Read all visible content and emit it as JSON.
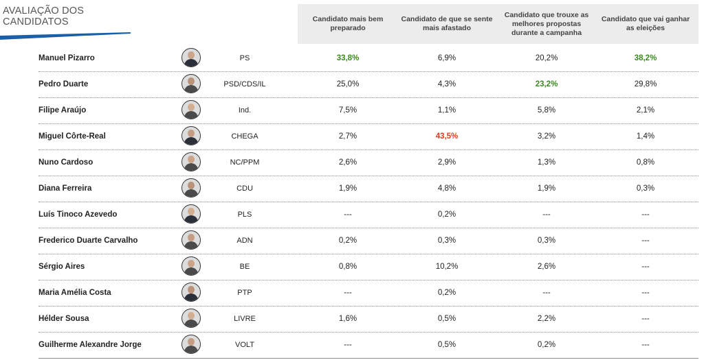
{
  "title": "AVALIAÇÃO DOS\nCANDIDATOS",
  "colors": {
    "highlight_green": "#3a8a1e",
    "highlight_red": "#e03c1e",
    "header_bg": "#ececec",
    "title_bar": "#1a5fa8"
  },
  "headers": [
    "Candidato mais bem preparado",
    "Candidato de que se sente mais afastado",
    "Candidato que trouxe as melhores propostas durante a campanha",
    "Candidato que vai ganhar as eleições"
  ],
  "rows": [
    {
      "name": "Manuel Pizarro",
      "party": "PS",
      "values": [
        "33,8%",
        "6,9%",
        "20,2%",
        "38,2%"
      ],
      "avatar_icon": "person-icon"
    },
    {
      "name": "Pedro Duarte",
      "party": "PSD/CDS/IL",
      "values": [
        "25,0%",
        "4,3%",
        "23,2%",
        "29,8%"
      ],
      "avatar_icon": "person-icon"
    },
    {
      "name": "Filipe Araújo",
      "party": "Ind.",
      "values": [
        "7,5%",
        "1,1%",
        "5,8%",
        "2,1%"
      ],
      "avatar_icon": "person-icon"
    },
    {
      "name": "Miguel Côrte-Real",
      "party": "CHEGA",
      "values": [
        "2,7%",
        "43,5%",
        "3,2%",
        "1,4%"
      ],
      "avatar_icon": "person-icon"
    },
    {
      "name": "Nuno Cardoso",
      "party": "NC/PPM",
      "values": [
        "2,6%",
        "2,9%",
        "1,3%",
        "0,8%"
      ],
      "avatar_icon": "person-icon"
    },
    {
      "name": "Diana Ferreira",
      "party": "CDU",
      "values": [
        "1,9%",
        "4,8%",
        "1,9%",
        "0,3%"
      ],
      "avatar_icon": "person-icon"
    },
    {
      "name": "Luís Tinoco Azevedo",
      "party": "PLS",
      "values": [
        "---",
        "0,2%",
        "---",
        "---"
      ],
      "avatar_icon": "person-icon"
    },
    {
      "name": "Frederico Duarte Carvalho",
      "party": "ADN",
      "values": [
        "0,2%",
        "0,3%",
        "0,3%",
        "---"
      ],
      "avatar_icon": "person-icon"
    },
    {
      "name": "Sérgio Aires",
      "party": "BE",
      "values": [
        "0,8%",
        "10,2%",
        "2,6%",
        "---"
      ],
      "avatar_icon": "person-icon"
    },
    {
      "name": "Maria Amélia Costa",
      "party": "PTP",
      "values": [
        "---",
        "0,2%",
        "---",
        "---"
      ],
      "avatar_icon": "person-icon"
    },
    {
      "name": "Hélder Sousa",
      "party": "LIVRE",
      "values": [
        "1,6%",
        "0,5%",
        "2,2%",
        "---"
      ],
      "avatar_icon": "person-icon"
    },
    {
      "name": "Guilherme Alexandre Jorge",
      "party": "VOLT",
      "values": [
        "---",
        "0,5%",
        "0,2%",
        "---"
      ],
      "avatar_icon": "person-icon"
    }
  ],
  "highlights": [
    {
      "row": 0,
      "col": 0,
      "color": "green"
    },
    {
      "row": 0,
      "col": 3,
      "color": "green"
    },
    {
      "row": 1,
      "col": 2,
      "color": "green"
    },
    {
      "row": 3,
      "col": 1,
      "color": "red"
    }
  ]
}
